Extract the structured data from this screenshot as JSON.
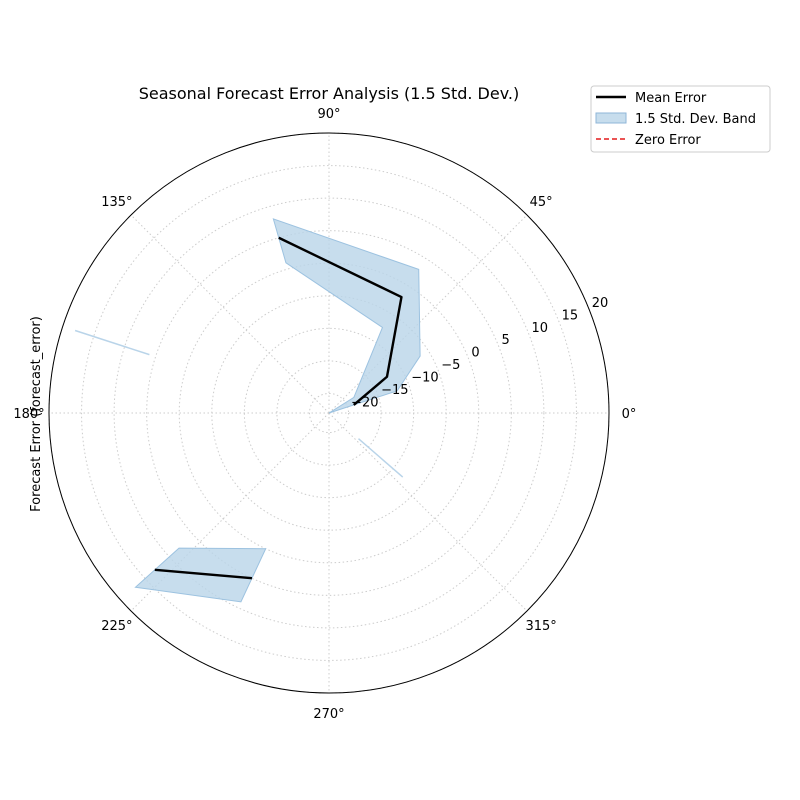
{
  "chart_data": {
    "type": "polar-line",
    "title": "Seasonal Forecast Error Analysis (1.5 Std. Dev.)",
    "ylabel": "Forecast Error (forecast_error)",
    "r_range": [
      -23,
      20
    ],
    "radial_ticks": [
      -20,
      -15,
      -10,
      -5,
      0,
      5,
      10,
      15,
      20
    ],
    "radial_tick_labels": [
      "−20",
      "−15",
      "−10",
      "−5",
      "0",
      "5",
      "10",
      "15",
      "20"
    ],
    "radial_label_angle_deg": 22.5,
    "angle_ticks": [
      0,
      45,
      90,
      135,
      180,
      225,
      270,
      315
    ],
    "angle_tick_labels": [
      "0°",
      "45°",
      "90°",
      "135°",
      "180°",
      "225°",
      "270°",
      "315°"
    ],
    "grid": true,
    "legend_position": "top-right, outside plot",
    "legend": [
      {
        "label": "Mean Error",
        "style": "line",
        "color": "#000000"
      },
      {
        "label": "1.5 Std. Dev. Band",
        "style": "patch",
        "color": "#b9d4e9"
      },
      {
        "label": "Zero Error",
        "style": "dashed",
        "color": "#e41a1c"
      }
    ],
    "mean_error": [
      {
        "segment": 1,
        "points": [
          {
            "theta": 18,
            "r": -19.0
          },
          {
            "theta": 32,
            "r": -12.5
          },
          {
            "theta": 58,
            "r": -2.0
          },
          {
            "theta": 106,
            "r": 5.0
          }
        ]
      },
      {
        "segment": 2,
        "points": [
          {
            "theta": 222,
            "r": 13.0
          },
          {
            "theta": 245,
            "r": 5.0
          }
        ]
      }
    ],
    "std_band": [
      {
        "segment": 1,
        "upper": [
          {
            "theta": 18,
            "r": -12.0
          },
          {
            "theta": 32,
            "r": -6.5
          },
          {
            "theta": 58,
            "r": 3.0
          },
          {
            "theta": 106,
            "r": 8.0
          }
        ],
        "lower": [
          {
            "theta": 18,
            "r": -23.0
          },
          {
            "theta": 32,
            "r": -18.5
          },
          {
            "theta": 58,
            "r": -7.5
          },
          {
            "theta": 106,
            "r": 1.0
          }
        ]
      },
      {
        "segment": 2,
        "upper": [
          {
            "theta": 222,
            "r": 17.0
          },
          {
            "theta": 245,
            "r": 9.0
          }
        ],
        "lower": [
          {
            "theta": 222,
            "r": 8.0
          },
          {
            "theta": 245,
            "r": 0.0
          }
        ]
      }
    ],
    "zero_error": {
      "r": 0,
      "visible": false
    },
    "stray_marks": [
      {
        "theta_from": 162,
        "r_from": 18.0,
        "theta_to": 162,
        "r_to": 6.0
      },
      {
        "theta_from": 319,
        "r_from": -17.0,
        "theta_to": 319,
        "r_to": -8.0
      }
    ]
  }
}
